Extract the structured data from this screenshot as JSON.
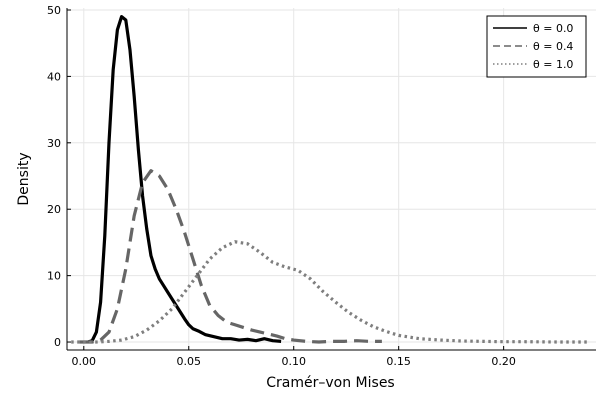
{
  "chart_data": {
    "type": "line",
    "title": "",
    "xlabel": "Cramér–von Mises",
    "ylabel": "Density",
    "xlim": [
      -0.008,
      0.244
    ],
    "ylim": [
      -1.2,
      50.3
    ],
    "xticks": [
      0.0,
      0.05,
      0.1,
      0.15,
      0.2
    ],
    "xtick_labels": [
      "0.00",
      "0.05",
      "0.10",
      "0.15",
      "0.20"
    ],
    "yticks": [
      0,
      10,
      20,
      30,
      40,
      50
    ],
    "ytick_labels": [
      "0",
      "10",
      "20",
      "30",
      "40",
      "50"
    ],
    "grid": true,
    "legend_position": "top-right",
    "series": [
      {
        "name": "θ = 0.0",
        "color": "#000000",
        "style": "solid",
        "x": [
          0.002,
          0.004,
          0.006,
          0.008,
          0.01,
          0.012,
          0.014,
          0.016,
          0.018,
          0.02,
          0.022,
          0.024,
          0.026,
          0.028,
          0.03,
          0.032,
          0.034,
          0.036,
          0.038,
          0.04,
          0.042,
          0.044,
          0.046,
          0.048,
          0.05,
          0.052,
          0.055,
          0.058,
          0.062,
          0.066,
          0.07,
          0.074,
          0.078,
          0.082,
          0.086,
          0.09,
          0.094
        ],
        "y": [
          0.0,
          0.2,
          1.5,
          6.0,
          16.0,
          30.0,
          41.0,
          47.0,
          49.0,
          48.5,
          44.0,
          37.0,
          29.0,
          22.0,
          17.0,
          13.0,
          11.0,
          9.5,
          8.5,
          7.5,
          6.5,
          5.5,
          4.5,
          3.5,
          2.6,
          2.0,
          1.6,
          1.1,
          0.8,
          0.5,
          0.5,
          0.3,
          0.4,
          0.2,
          0.5,
          0.2,
          0.1
        ]
      },
      {
        "name": "θ = 0.4",
        "color": "#666666",
        "style": "dashed",
        "x": [
          -0.002,
          0.004,
          0.008,
          0.012,
          0.016,
          0.02,
          0.024,
          0.028,
          0.032,
          0.036,
          0.04,
          0.044,
          0.048,
          0.052,
          0.056,
          0.06,
          0.064,
          0.068,
          0.072,
          0.076,
          0.08,
          0.084,
          0.088,
          0.092,
          0.096,
          0.1,
          0.106,
          0.112,
          0.118,
          0.124,
          0.13,
          0.136,
          0.142
        ],
        "y": [
          0.0,
          0.0,
          0.3,
          1.5,
          5.0,
          11.0,
          19.0,
          24.0,
          25.8,
          25.0,
          23.0,
          20.0,
          16.5,
          12.5,
          8.5,
          5.5,
          4.0,
          3.0,
          2.6,
          2.2,
          1.8,
          1.5,
          1.2,
          0.9,
          0.5,
          0.3,
          0.1,
          0.0,
          0.1,
          0.1,
          0.2,
          0.1,
          0.1
        ]
      },
      {
        "name": "θ = 1.0",
        "color": "#7f7f7f",
        "style": "dotted",
        "x": [
          -0.006,
          0.0,
          0.006,
          0.012,
          0.018,
          0.024,
          0.03,
          0.036,
          0.042,
          0.048,
          0.054,
          0.06,
          0.066,
          0.072,
          0.078,
          0.084,
          0.09,
          0.096,
          0.102,
          0.108,
          0.114,
          0.12,
          0.126,
          0.132,
          0.138,
          0.144,
          0.15,
          0.16,
          0.17,
          0.18,
          0.19,
          0.2,
          0.21,
          0.22,
          0.23,
          0.24
        ],
        "y": [
          0.0,
          0.0,
          0.0,
          0.1,
          0.3,
          0.8,
          1.8,
          3.2,
          5.0,
          7.5,
          10.0,
          12.5,
          14.2,
          15.1,
          14.8,
          13.5,
          12.0,
          11.3,
          10.8,
          9.5,
          7.6,
          6.0,
          4.5,
          3.3,
          2.3,
          1.6,
          1.0,
          0.5,
          0.3,
          0.15,
          0.1,
          0.05,
          0.05,
          0.02,
          0.0,
          0.0
        ]
      }
    ]
  }
}
